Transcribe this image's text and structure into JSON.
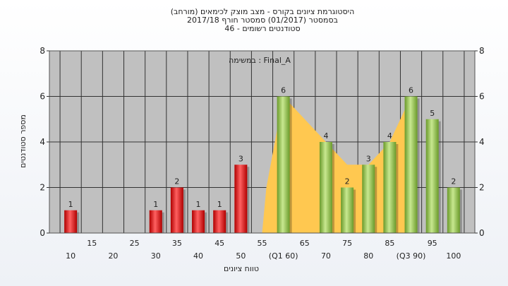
{
  "chart_data": {
    "type": "bar",
    "title_lines": [
      "(היסטוגרמת ציונים בקורס - מצב מוצק לכימאים (מורחב",
      "בסמסטר  (01/2017)  סמסטר חורף 2017/18",
      "סטודנטים רשומים - 46"
    ],
    "annotation": "במשימה : Final_A",
    "xlabel": "טווח ציונים",
    "ylabel": "מספר סטודנטים",
    "ylim": [
      0,
      8
    ],
    "y_ticks": [
      "0",
      "2",
      "4",
      "6",
      "8"
    ],
    "x_ticks": [
      {
        "x": 10,
        "label": "10"
      },
      {
        "x": 15,
        "label": "15"
      },
      {
        "x": 20,
        "label": "20"
      },
      {
        "x": 25,
        "label": "25"
      },
      {
        "x": 30,
        "label": "30"
      },
      {
        "x": 35,
        "label": "35"
      },
      {
        "x": 40,
        "label": "40"
      },
      {
        "x": 45,
        "label": "45"
      },
      {
        "x": 50,
        "label": "50"
      },
      {
        "x": 55,
        "label": "55"
      },
      {
        "x": 60,
        "label": "(Q1 60)"
      },
      {
        "x": 65,
        "label": "65"
      },
      {
        "x": 70,
        "label": "70"
      },
      {
        "x": 75,
        "label": "75"
      },
      {
        "x": 80,
        "label": "80"
      },
      {
        "x": 85,
        "label": "85"
      },
      {
        "x": 90,
        "label": "(Q3 90)"
      },
      {
        "x": 95,
        "label": "95"
      },
      {
        "x": 100,
        "label": "100"
      }
    ],
    "bars": [
      {
        "x": 10,
        "value": 1,
        "label": "1",
        "color": "red"
      },
      {
        "x": 30,
        "value": 1,
        "label": "1",
        "color": "red"
      },
      {
        "x": 35,
        "value": 2,
        "label": "2",
        "color": "red"
      },
      {
        "x": 40,
        "value": 1,
        "label": "1",
        "color": "red"
      },
      {
        "x": 45,
        "value": 1,
        "label": "1",
        "color": "red"
      },
      {
        "x": 50,
        "value": 3,
        "label": "3",
        "color": "red"
      },
      {
        "x": 60,
        "value": 6,
        "label": "6",
        "color": "green"
      },
      {
        "x": 70,
        "value": 4,
        "label": "4",
        "color": "green"
      },
      {
        "x": 75,
        "value": 2,
        "label": "2",
        "color": "green"
      },
      {
        "x": 80,
        "value": 3,
        "label": "3",
        "color": "green"
      },
      {
        "x": 85,
        "value": 4,
        "label": "4",
        "color": "green"
      },
      {
        "x": 90,
        "value": 6,
        "label": "6",
        "color": "green"
      },
      {
        "x": 95,
        "value": 5,
        "label": "5",
        "color": "green"
      },
      {
        "x": 100,
        "value": 2,
        "label": "2",
        "color": "green"
      }
    ],
    "quartile_band": [
      {
        "x": 55,
        "y": 0
      },
      {
        "x": 56,
        "y": 2
      },
      {
        "x": 60,
        "y": 6
      },
      {
        "x": 70,
        "y": 4
      },
      {
        "x": 75,
        "y": 3
      },
      {
        "x": 80,
        "y": 3
      },
      {
        "x": 85,
        "y": 4
      },
      {
        "x": 90,
        "y": 6
      },
      {
        "x": 90,
        "y": 0
      }
    ],
    "grid": true,
    "colors": {
      "plot_bg": "#c0c0c0",
      "band": "#ffc850",
      "red_light": "#ff6060",
      "red_dark": "#b00000",
      "green_light": "#c8e890",
      "green_dark": "#6a9a2a"
    }
  }
}
